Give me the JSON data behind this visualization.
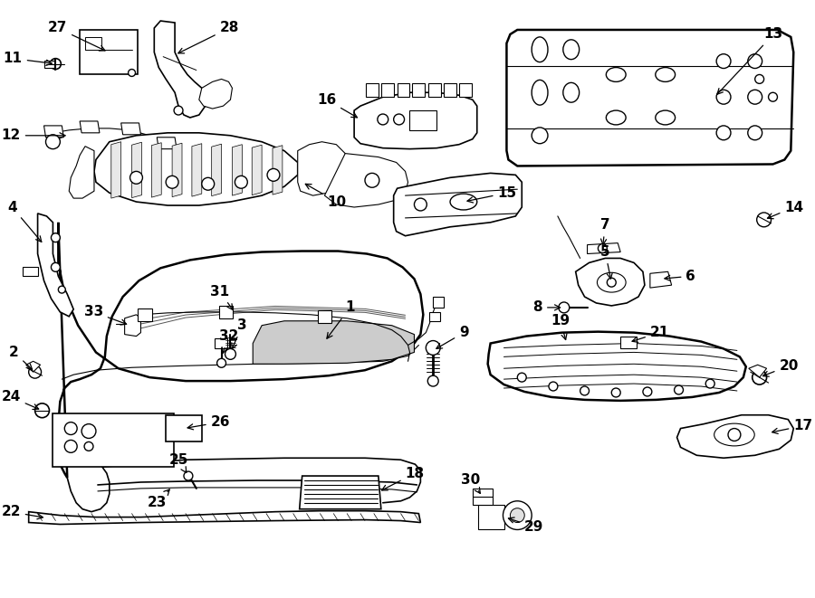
{
  "bg_color": "#ffffff",
  "line_color": "#000000",
  "text_color": "#000000",
  "fig_width": 9.0,
  "fig_height": 6.61,
  "dpi": 100
}
